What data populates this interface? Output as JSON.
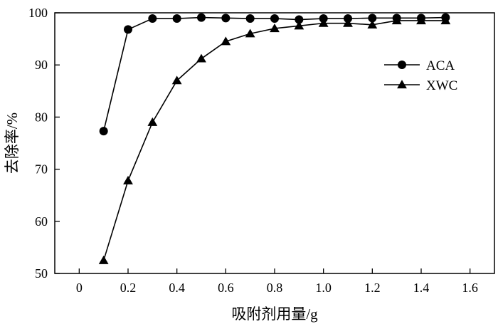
{
  "chart_data": {
    "type": "line",
    "title": "",
    "xlabel": "吸附剂用量/g",
    "ylabel": "去除率/%",
    "xlim": [
      -0.1,
      1.7
    ],
    "ylim": [
      50,
      100
    ],
    "xticks": [
      0,
      0.2,
      0.4,
      0.6,
      0.8,
      1.0,
      1.2,
      1.4,
      1.6
    ],
    "xtick_labels": [
      "0",
      "0.2",
      "0.4",
      "0.6",
      "0.8",
      "1.0",
      "1.2",
      "1.4",
      "1.6"
    ],
    "yticks": [
      50,
      60,
      70,
      80,
      90,
      100
    ],
    "ytick_labels": [
      "50",
      "60",
      "70",
      "80",
      "90",
      "100"
    ],
    "grid": false,
    "legend_position": "top-right",
    "series": [
      {
        "name": "ACA",
        "marker": "circle",
        "color": "#000000",
        "x": [
          0.1,
          0.2,
          0.3,
          0.4,
          0.5,
          0.6,
          0.7,
          0.8,
          0.9,
          1.0,
          1.1,
          1.2,
          1.3,
          1.4,
          1.5
        ],
        "y": [
          77.3,
          96.8,
          98.9,
          98.9,
          99.1,
          99.0,
          98.9,
          98.9,
          98.7,
          98.9,
          98.9,
          99.0,
          99.0,
          99.0,
          99.1
        ]
      },
      {
        "name": "XWC",
        "marker": "triangle",
        "color": "#000000",
        "x": [
          0.1,
          0.2,
          0.3,
          0.4,
          0.5,
          0.6,
          0.7,
          0.8,
          0.9,
          1.0,
          1.1,
          1.2,
          1.3,
          1.4,
          1.5
        ],
        "y": [
          52.5,
          67.8,
          79.0,
          87.0,
          91.2,
          94.5,
          96.0,
          97.0,
          97.5,
          98.0,
          98.0,
          97.7,
          98.5,
          98.5,
          98.5
        ]
      }
    ]
  }
}
